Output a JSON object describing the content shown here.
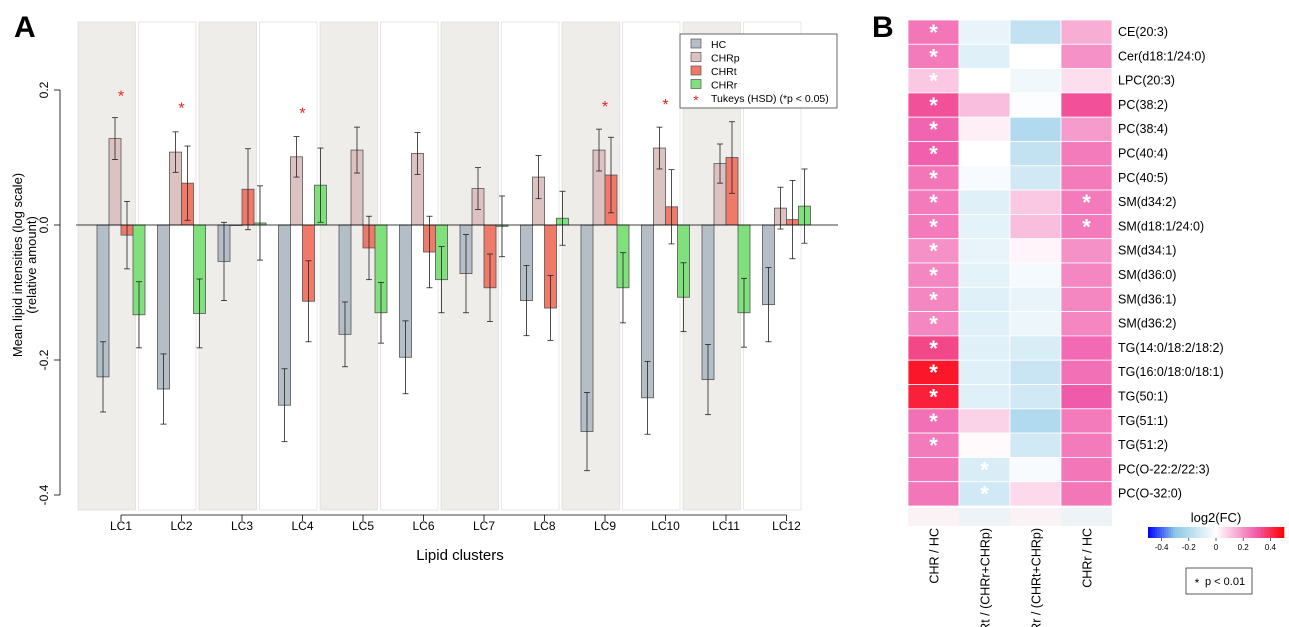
{
  "panels": {
    "a_label": "A",
    "b_label": "B"
  },
  "chart_data": [
    {
      "type": "bar",
      "panel": "A",
      "xlabel": "Lipid clusters",
      "ylabel_line1": "Mean lipid intensities (log scale)",
      "ylabel_line2": "(relative amount)",
      "ylim": [
        -0.42,
        0.3
      ],
      "yticks": [
        -0.4,
        -0.2,
        0.0,
        0.2
      ],
      "ytick_labels": [
        "-0.4",
        "-0.2",
        "0.0",
        "0.2"
      ],
      "categories": [
        "LC1",
        "LC2",
        "LC3",
        "LC4",
        "LC5",
        "LC6",
        "LC7",
        "LC8",
        "LC9",
        "LC10",
        "LC11",
        "LC12"
      ],
      "shaded_clusters": [
        "LC1",
        "LC3",
        "LC5",
        "LC7",
        "LC9",
        "LC11"
      ],
      "series": [
        {
          "name": "HC",
          "color": "#b4bec6",
          "values": [
            -0.225,
            -0.243,
            -0.054,
            -0.267,
            -0.162,
            -0.196,
            -0.072,
            -0.112,
            -0.306,
            -0.256,
            -0.229,
            -0.118
          ],
          "err": [
            0.052,
            0.052,
            0.058,
            0.054,
            0.048,
            0.054,
            0.058,
            0.052,
            0.058,
            0.054,
            0.052,
            0.055
          ]
        },
        {
          "name": "CHRp",
          "color": "#dcc3c1",
          "values": [
            0.128,
            0.108,
            0.0,
            0.101,
            0.111,
            0.106,
            0.054,
            0.071,
            0.111,
            0.114,
            0.091,
            0.025
          ],
          "err": [
            0.031,
            0.03,
            0.0,
            0.03,
            0.034,
            0.031,
            0.031,
            0.032,
            0.031,
            0.031,
            0.029,
            0.031
          ]
        },
        {
          "name": "CHRt",
          "color": "#f07a6a",
          "values": [
            -0.015,
            0.062,
            0.053,
            -0.113,
            -0.034,
            -0.04,
            -0.093,
            -0.123,
            0.074,
            0.027,
            0.1,
            0.008
          ],
          "err": [
            0.05,
            0.055,
            0.06,
            0.06,
            0.047,
            0.053,
            0.05,
            0.048,
            0.056,
            0.055,
            0.053,
            0.058
          ]
        },
        {
          "name": "CHRr",
          "color": "#80e07c",
          "values": [
            -0.133,
            -0.131,
            0.003,
            0.059,
            -0.13,
            -0.081,
            -0.002,
            0.01,
            -0.093,
            -0.107,
            -0.13,
            0.028
          ],
          "err": [
            0.049,
            0.051,
            0.055,
            0.055,
            0.045,
            0.049,
            0.045,
            0.04,
            0.052,
            0.051,
            0.051,
            0.055
          ]
        }
      ],
      "significance": [
        {
          "category": "LC1",
          "y": 0.195
        },
        {
          "category": "LC2",
          "y": 0.177
        },
        {
          "category": "LC4",
          "y": 0.17
        },
        {
          "category": "LC9",
          "y": 0.179
        },
        {
          "category": "LC10",
          "y": 0.182
        }
      ],
      "legend": {
        "position": "top-right",
        "items": [
          "HC",
          "CHRp",
          "CHRt",
          "CHRr",
          "Tukeys (HSD) (*p < 0.05)"
        ],
        "star_color": "#e8241c"
      }
    },
    {
      "type": "heatmap",
      "panel": "B",
      "columns": [
        "CHR / HC",
        "CHRt / (CHRr+CHRp)",
        "CHRr / (CHRt+CHRp)",
        "CHRr / HC"
      ],
      "rows": [
        "CE(20:3)",
        "Cer(d18:1/24:0)",
        "LPC(20:3)",
        "PC(38:2)",
        "PC(38:4)",
        "PC(40:4)",
        "PC(40:5)",
        "SM(d34:2)",
        "SM(d18:1/24:0)",
        "SM(d34:1)",
        "SM(d36:0)",
        "SM(d36:1)",
        "SM(d36:2)",
        "TG(14:0/18:2/18:2)",
        "TG(16:0/18:0/18:1)",
        "TG(50:1)",
        "TG(51:1)",
        "TG(51:2)",
        "PC(O-22:2/22:3)",
        "PC(O-32:0)"
      ],
      "values": [
        [
          0.25,
          -0.06,
          -0.16,
          0.15
        ],
        [
          0.24,
          -0.08,
          0.0,
          0.2
        ],
        [
          0.1,
          0.0,
          -0.04,
          0.06
        ],
        [
          0.32,
          0.12,
          -0.01,
          0.32
        ],
        [
          0.28,
          0.03,
          -0.2,
          0.18
        ],
        [
          0.29,
          0.0,
          -0.16,
          0.24
        ],
        [
          0.25,
          -0.02,
          -0.12,
          0.24
        ],
        [
          0.24,
          -0.08,
          0.1,
          0.24
        ],
        [
          0.24,
          -0.07,
          0.12,
          0.24
        ],
        [
          0.2,
          -0.06,
          0.02,
          0.2
        ],
        [
          0.22,
          -0.07,
          -0.03,
          0.22
        ],
        [
          0.22,
          -0.08,
          -0.06,
          0.22
        ],
        [
          0.22,
          -0.08,
          -0.05,
          0.22
        ],
        [
          0.34,
          -0.08,
          -0.1,
          0.27
        ],
        [
          0.45,
          -0.08,
          -0.14,
          0.26
        ],
        [
          0.43,
          -0.08,
          -0.12,
          0.3
        ],
        [
          0.26,
          0.08,
          -0.2,
          0.24
        ],
        [
          0.24,
          0.01,
          -0.12,
          0.24
        ],
        [
          0.25,
          -0.1,
          -0.02,
          0.25
        ],
        [
          0.25,
          -0.12,
          0.07,
          0.25
        ]
      ],
      "stars": [
        [
          0,
          0
        ],
        [
          1,
          0
        ],
        [
          2,
          0
        ],
        [
          3,
          0
        ],
        [
          4,
          0
        ],
        [
          5,
          0
        ],
        [
          6,
          0
        ],
        [
          7,
          0
        ],
        [
          8,
          0
        ],
        [
          9,
          0
        ],
        [
          10,
          0
        ],
        [
          11,
          0
        ],
        [
          12,
          0
        ],
        [
          13,
          0
        ],
        [
          14,
          0
        ],
        [
          15,
          0
        ],
        [
          16,
          0
        ],
        [
          17,
          0
        ],
        [
          7,
          3
        ],
        [
          8,
          3
        ],
        [
          18,
          1
        ],
        [
          19,
          1
        ]
      ],
      "colorbar": {
        "title": "log2(FC)",
        "range": [
          -0.5,
          0.5
        ],
        "tick_labels": [
          "-0.4",
          "-0.2",
          "0",
          "0.2",
          "0.4"
        ],
        "tick_values": [
          -0.4,
          -0.2,
          0.0,
          0.2,
          0.4
        ],
        "low_color": "#0000ff",
        "mid_color": "#ffffff",
        "high_color": "#ff0000"
      },
      "star_legend": "p < 0.01",
      "star_symbol": "*"
    }
  ]
}
